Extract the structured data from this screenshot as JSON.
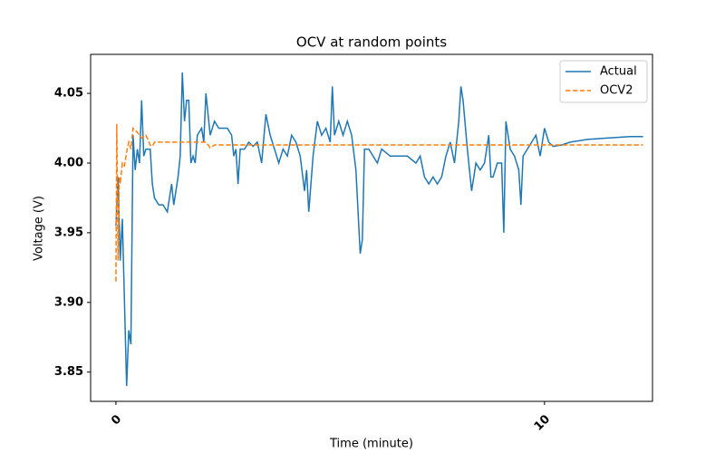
{
  "chart_data": {
    "type": "line",
    "title": "OCV at random points",
    "x_label": "Time (minute)",
    "y_label": "Voltage (V)",
    "xlim": [
      -0.59,
      12.52
    ],
    "ylim": [
      3.829,
      4.078
    ],
    "xticks": [
      0,
      10
    ],
    "yticks": [
      3.85,
      {
        "value": 3.9,
        "label": "3.90"
      },
      3.95,
      {
        "value": 4.0,
        "label": "4.00"
      },
      4.05
    ],
    "legend": "upper right",
    "series": [
      {
        "name": "Actual",
        "color": "#1f77b4",
        "linestyle": "solid",
        "x": [
          0,
          0.05,
          0.1,
          0.15,
          0.2,
          0.25,
          0.3,
          0.35,
          0.4,
          0.45,
          0.5,
          0.55,
          0.6,
          0.65,
          0.7,
          0.8,
          0.85,
          0.9,
          1.0,
          1.1,
          1.2,
          1.3,
          1.35,
          1.45,
          1.5,
          1.55,
          1.6,
          1.65,
          1.7,
          1.75,
          1.8,
          1.85,
          1.9,
          2.0,
          2.05,
          2.1,
          2.2,
          2.3,
          2.4,
          2.5,
          2.6,
          2.7,
          2.75,
          2.8,
          2.85,
          2.9,
          3.0,
          3.1,
          3.2,
          3.3,
          3.4,
          3.5,
          3.6,
          3.7,
          3.8,
          3.9,
          4.0,
          4.1,
          4.2,
          4.3,
          4.4,
          4.45,
          4.5,
          4.6,
          4.7,
          4.8,
          4.9,
          5.0,
          5.05,
          5.1,
          5.2,
          5.3,
          5.4,
          5.5,
          5.6,
          5.7,
          5.75,
          5.8,
          5.9,
          6.0,
          6.1,
          6.2,
          6.4,
          6.6,
          6.8,
          7.0,
          7.1,
          7.2,
          7.3,
          7.4,
          7.5,
          7.6,
          7.7,
          7.8,
          7.9,
          8.0,
          8.05,
          8.1,
          8.2,
          8.3,
          8.4,
          8.5,
          8.6,
          8.7,
          8.75,
          8.8,
          8.9,
          9.0,
          9.05,
          9.1,
          9.2,
          9.3,
          9.4,
          9.45,
          9.5,
          9.6,
          9.7,
          9.8,
          9.9,
          10.0,
          10.1,
          10.2,
          10.4,
          10.6,
          11,
          11.5,
          12,
          12.3
        ],
        "values": [
          3.955,
          3.99,
          3.93,
          3.96,
          3.9,
          3.84,
          3.88,
          3.87,
          4.02,
          3.995,
          4.01,
          4.0,
          4.045,
          4.005,
          4.01,
          4.01,
          3.985,
          3.975,
          3.97,
          3.97,
          3.965,
          3.985,
          3.97,
          3.99,
          4.005,
          4.065,
          4.03,
          4.045,
          4.045,
          4.0,
          4.005,
          4.0,
          4.02,
          4.025,
          4.015,
          4.05,
          4.02,
          4.03,
          4.025,
          4.025,
          4.025,
          4.02,
          4.005,
          4.01,
          3.985,
          4.01,
          4.01,
          4.015,
          4.012,
          4.015,
          4.0,
          4.035,
          4.02,
          4.01,
          4.0,
          4.01,
          4.005,
          4.02,
          4.015,
          4.005,
          3.98,
          3.995,
          3.965,
          4.005,
          4.03,
          4.02,
          4.025,
          4.015,
          4.055,
          4.02,
          4.03,
          4.02,
          4.03,
          4.02,
          3.995,
          3.935,
          3.945,
          4.01,
          4.01,
          4.005,
          4.0,
          4.01,
          4.005,
          4.005,
          4.005,
          4.0,
          4.005,
          3.99,
          3.985,
          3.99,
          3.985,
          3.99,
          4.005,
          4.015,
          4.0,
          4.03,
          4.055,
          4.045,
          4.01,
          3.98,
          4.0,
          3.995,
          4.0,
          4.02,
          3.99,
          3.99,
          4.0,
          4.0,
          3.95,
          4.03,
          4.01,
          4.005,
          3.995,
          3.97,
          4.005,
          4.01,
          4.015,
          4.02,
          4.005,
          4.025,
          4.015,
          4.012,
          4.013,
          4.015,
          4.017,
          4.018,
          4.019,
          4.019
        ]
      },
      {
        "name": "OCV2",
        "color": "#ff7f0e",
        "linestyle": "dashed",
        "x": [
          0,
          0.02,
          0.05,
          0.08,
          0.1,
          0.15,
          0.2,
          0.25,
          0.3,
          0.35,
          0.4,
          0.5,
          0.6,
          0.7,
          0.8,
          0.85,
          0.9,
          1.0,
          2.1,
          2.2,
          2.3,
          3.0,
          12.3
        ],
        "values": [
          3.915,
          4.028,
          3.93,
          3.99,
          3.985,
          4.0,
          3.998,
          4.008,
          4.015,
          4.01,
          4.025,
          4.022,
          4.018,
          4.02,
          4.013,
          4.012,
          4.015,
          4.015,
          4.015,
          4.011,
          4.013,
          4.013,
          4.013
        ]
      }
    ]
  }
}
